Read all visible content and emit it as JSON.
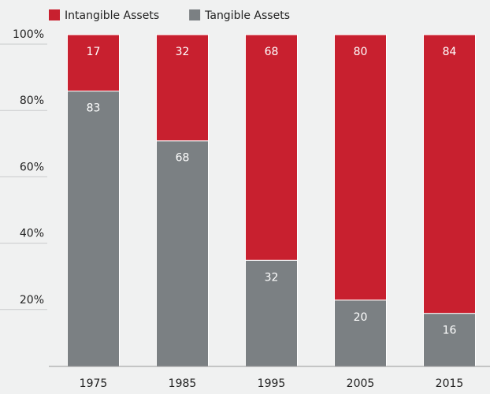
{
  "chart_data": {
    "type": "stacked_bar",
    "categories": [
      "1975",
      "1985",
      "1995",
      "2005",
      "2015"
    ],
    "series": [
      {
        "name": "Intangible Assets",
        "color": "#c8202f",
        "values": [
          17,
          32,
          68,
          80,
          84
        ]
      },
      {
        "name": "Tangible Assets",
        "color": "#7b8083",
        "values": [
          83,
          68,
          32,
          20,
          16
        ]
      }
    ],
    "ylim": [
      0,
      100
    ],
    "yticks": [
      {
        "value": 20,
        "label": "20%"
      },
      {
        "value": 40,
        "label": "40%"
      },
      {
        "value": 60,
        "label": "60%"
      },
      {
        "value": 80,
        "label": "80%"
      },
      {
        "value": 100,
        "label": "100%"
      }
    ],
    "legend": "top"
  }
}
